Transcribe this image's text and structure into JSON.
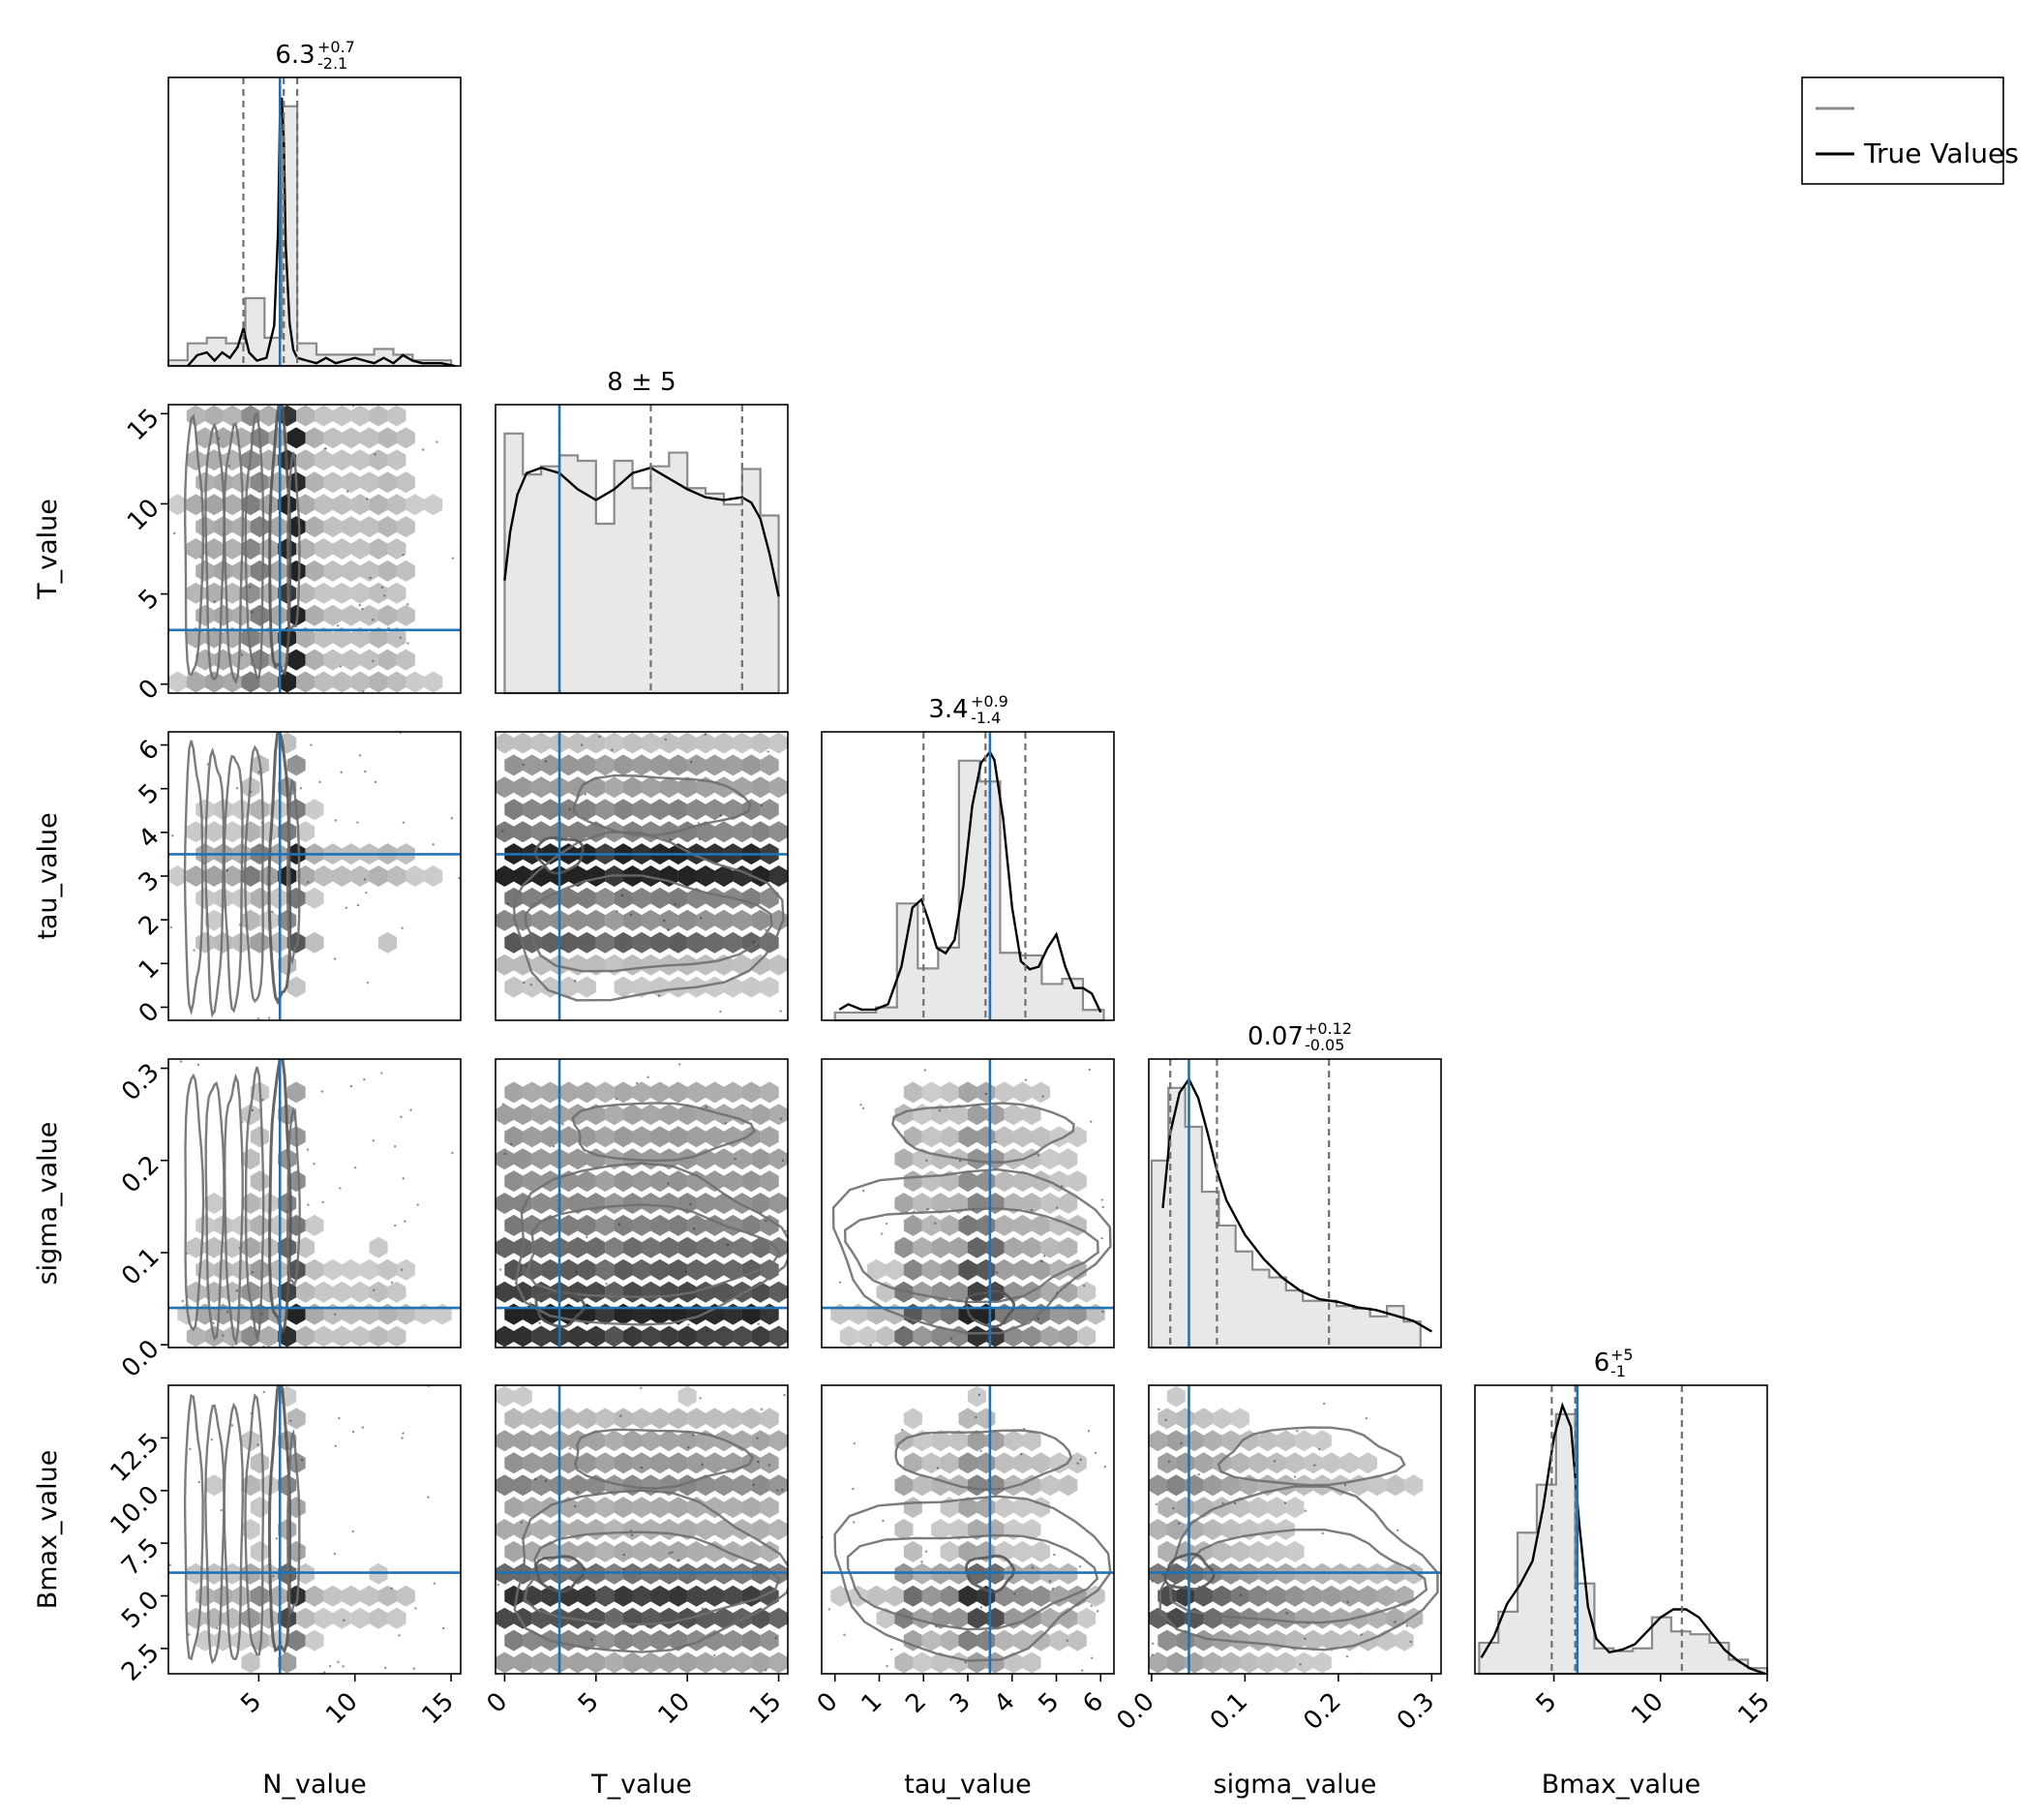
{
  "chart_data": {
    "type": "corner",
    "parameters": [
      "N_value",
      "T_value",
      "tau_value",
      "sigma_value",
      "Bmax_value"
    ],
    "axis_labels": [
      "N_value",
      "T_value",
      "tau_value",
      "sigma_value",
      "Bmax_value"
    ],
    "ranges": [
      [
        0.3,
        15.5
      ],
      [
        -0.5,
        15.5
      ],
      [
        -0.3,
        6.3
      ],
      [
        -0.003,
        0.31
      ],
      [
        1.3,
        15.0
      ]
    ],
    "ticks": [
      {
        "values": [
          5,
          10,
          15
        ],
        "labels": [
          "5",
          "10",
          "15"
        ]
      },
      {
        "values": [
          0,
          5,
          10,
          15
        ],
        "labels": [
          "0",
          "5",
          "10",
          "15"
        ]
      },
      {
        "values": [
          0,
          1,
          2,
          3,
          4,
          5,
          6
        ],
        "labels": [
          "0",
          "1",
          "2",
          "3",
          "4",
          "5",
          "6"
        ]
      },
      {
        "values": [
          0.0,
          0.1,
          0.2,
          0.3
        ],
        "labels": [
          "0.0",
          "0.1",
          "0.2",
          "0.3"
        ]
      },
      {
        "values": [
          2.5,
          5.0,
          7.5,
          10.0,
          12.5
        ],
        "labels": [
          "2.5",
          "5.0",
          "7.5",
          "10.0",
          "12.5"
        ]
      }
    ],
    "x_ticks_bottom": [
      {
        "values": [
          5,
          10,
          15
        ],
        "labels": [
          "5",
          "10",
          "15"
        ]
      },
      {
        "values": [
          0,
          5,
          10,
          15
        ],
        "labels": [
          "0",
          "5",
          "10",
          "15"
        ]
      },
      {
        "values": [
          0,
          1,
          2,
          3,
          4,
          5,
          6
        ],
        "labels": [
          "0",
          "1",
          "2",
          "3",
          "4",
          "5",
          "6"
        ]
      },
      {
        "values": [
          0.0,
          0.1,
          0.2,
          0.3
        ],
        "labels": [
          "0.0",
          "0.1",
          "0.2",
          "0.3"
        ]
      },
      {
        "values": [
          5,
          10,
          15
        ],
        "labels": [
          "5",
          "10",
          "15"
        ]
      }
    ],
    "titles": [
      {
        "main": "6.3",
        "sup": "+0.7",
        "sub": "-2.1"
      },
      {
        "main": "8 ± 5",
        "sup": "",
        "sub": ""
      },
      {
        "main": "3.4",
        "sup": "+0.9",
        "sub": "-1.4"
      },
      {
        "main": "0.07",
        "sup": "+0.12",
        "sub": "-0.05"
      },
      {
        "main": "6",
        "sup": "+5",
        "sub": "-1"
      }
    ],
    "quantiles": [
      [
        4.2,
        6.3,
        7.0
      ],
      [
        3.0,
        8.0,
        13.0
      ],
      [
        2.0,
        3.4,
        4.3
      ],
      [
        0.02,
        0.07,
        0.19
      ],
      [
        4.9,
        6.0,
        11.0
      ]
    ],
    "true_values": [
      6.1,
      3.0,
      3.5,
      0.04,
      6.1
    ],
    "histograms": [
      {
        "edges": [
          0.3,
          1.3,
          2.3,
          3.3,
          4.3,
          5.3,
          6.2,
          7.0,
          8.0,
          9.0,
          10.0,
          11.0,
          12.0,
          13.0,
          14.0,
          15.0
        ],
        "counts": [
          0.01,
          0.04,
          0.05,
          0.04,
          0.12,
          0.05,
          0.46,
          0.04,
          0.02,
          0.02,
          0.02,
          0.03,
          0.02,
          0.01,
          0.01
        ]
      },
      {
        "edges": [
          0,
          1,
          2,
          3,
          4,
          5,
          6,
          7,
          8,
          9,
          10,
          11,
          12,
          13,
          14,
          15
        ],
        "counts": [
          0.95,
          0.8,
          0.83,
          0.87,
          0.85,
          0.62,
          0.85,
          0.75,
          0.83,
          0.88,
          0.75,
          0.73,
          0.69,
          0.82,
          0.65
        ]
      },
      {
        "edges": [
          0.0,
          0.47,
          0.93,
          1.4,
          1.87,
          2.33,
          2.8,
          3.27,
          3.73,
          4.2,
          4.67,
          5.13,
          5.6,
          6.07
        ],
        "counts": [
          0.03,
          0.03,
          0.05,
          0.45,
          0.2,
          0.28,
          1.0,
          0.92,
          0.26,
          0.25,
          0.14,
          0.16,
          0.04
        ]
      },
      {
        "edges": [
          0.0,
          0.018,
          0.036,
          0.054,
          0.072,
          0.09,
          0.108,
          0.126,
          0.144,
          0.162,
          0.18,
          0.198,
          0.216,
          0.234,
          0.252,
          0.27,
          0.288
        ],
        "counts": [
          0.72,
          1.0,
          0.85,
          0.6,
          0.47,
          0.37,
          0.3,
          0.27,
          0.22,
          0.18,
          0.18,
          0.16,
          0.15,
          0.12,
          0.16,
          0.1
        ]
      },
      {
        "edges": [
          1.5,
          2.4,
          3.3,
          4.2,
          5.1,
          6.0,
          6.9,
          7.8,
          8.7,
          9.6,
          10.5,
          11.4,
          12.3,
          13.2,
          14.1,
          15.0
        ],
        "counts": [
          0.11,
          0.22,
          0.5,
          0.67,
          0.92,
          0.32,
          0.09,
          0.08,
          0.09,
          0.2,
          0.15,
          0.14,
          0.11,
          0.05,
          0.02
        ]
      }
    ],
    "kde_curves": [
      {
        "x": [
          1.3,
          1.8,
          2.3,
          2.7,
          3.1,
          3.5,
          3.9,
          4.2,
          4.5,
          4.9,
          5.4,
          5.8,
          6.0,
          6.1,
          6.2,
          6.3,
          6.4,
          6.6,
          6.8,
          7.0,
          7.5,
          8.0,
          8.5,
          9.0,
          9.5,
          10.0,
          10.5,
          11.0,
          11.5,
          12.0,
          12.5,
          13.0,
          13.5,
          14.0,
          14.5,
          15.2
        ],
        "y": [
          0.0,
          0.04,
          0.05,
          0.02,
          0.05,
          0.03,
          0.07,
          0.14,
          0.05,
          0.02,
          0.03,
          0.15,
          0.5,
          0.92,
          1.0,
          0.85,
          0.45,
          0.16,
          0.06,
          0.03,
          0.02,
          0.01,
          0.03,
          0.01,
          0.02,
          0.03,
          0.02,
          0.01,
          0.03,
          0.01,
          0.04,
          0.02,
          0.01,
          0.01,
          0.01,
          0.0
        ]
      },
      {
        "x": [
          0.0,
          0.3,
          0.7,
          1.2,
          2.0,
          3.0,
          4.0,
          5.0,
          6.0,
          7.0,
          8.0,
          9.0,
          9.5,
          10.0,
          11.0,
          12.0,
          13.0,
          13.5,
          14.0,
          14.5,
          15.0
        ],
        "y": [
          0.42,
          0.6,
          0.74,
          0.82,
          0.84,
          0.82,
          0.76,
          0.72,
          0.76,
          0.82,
          0.84,
          0.8,
          0.78,
          0.76,
          0.73,
          0.72,
          0.73,
          0.71,
          0.65,
          0.52,
          0.36
        ]
      },
      {
        "x": [
          0.1,
          0.3,
          0.6,
          0.9,
          1.2,
          1.5,
          1.75,
          1.95,
          2.1,
          2.3,
          2.5,
          2.7,
          2.9,
          3.1,
          3.3,
          3.5,
          3.6,
          3.8,
          4.0,
          4.2,
          4.4,
          4.6,
          4.8,
          5.0,
          5.2,
          5.4,
          5.6,
          5.8,
          6.0
        ],
        "y": [
          0.04,
          0.06,
          0.04,
          0.04,
          0.06,
          0.2,
          0.42,
          0.45,
          0.38,
          0.27,
          0.25,
          0.3,
          0.5,
          0.8,
          0.96,
          1.0,
          0.97,
          0.75,
          0.42,
          0.22,
          0.19,
          0.2,
          0.27,
          0.32,
          0.2,
          0.12,
          0.12,
          0.1,
          0.03
        ]
      },
      {
        "x": [
          0.012,
          0.02,
          0.03,
          0.04,
          0.05,
          0.06,
          0.07,
          0.08,
          0.1,
          0.12,
          0.14,
          0.16,
          0.18,
          0.2,
          0.22,
          0.24,
          0.26,
          0.28,
          0.3
        ],
        "y": [
          0.52,
          0.8,
          0.95,
          1.0,
          0.93,
          0.8,
          0.66,
          0.55,
          0.42,
          0.33,
          0.26,
          0.21,
          0.18,
          0.17,
          0.15,
          0.14,
          0.12,
          0.1,
          0.06
        ]
      },
      {
        "x": [
          1.6,
          2.2,
          2.8,
          3.4,
          4.0,
          4.5,
          5.0,
          5.4,
          5.8,
          6.2,
          6.6,
          7.0,
          7.6,
          8.2,
          8.8,
          9.4,
          10.0,
          10.6,
          11.2,
          11.8,
          12.4,
          13.0,
          13.6,
          14.2,
          14.9
        ],
        "y": [
          0.06,
          0.14,
          0.26,
          0.33,
          0.42,
          0.62,
          0.88,
          1.0,
          0.92,
          0.55,
          0.25,
          0.13,
          0.08,
          0.09,
          0.11,
          0.16,
          0.21,
          0.24,
          0.24,
          0.21,
          0.15,
          0.09,
          0.05,
          0.02,
          0.0
        ]
      }
    ],
    "hex_density": [
      {
        "pair": [
          0,
          1
        ],
        "columns": [
          [
            1.5,
            0.25
          ],
          [
            2.6,
            0.25
          ],
          [
            3.5,
            0.25
          ],
          [
            4.6,
            0.3
          ],
          [
            6.1,
            0.9
          ],
          [
            7.0,
            0.2
          ],
          [
            8.5,
            0.12
          ],
          [
            10.5,
            0.12
          ],
          [
            12.5,
            0.08
          ]
        ]
      },
      {
        "pair": [
          1,
          2
        ],
        "bands": [
          [
            3.4,
            0.75
          ],
          [
            2.0,
            0.25
          ],
          [
            5.0,
            0.2
          ],
          [
            2.5,
            0.18
          ]
        ]
      },
      {
        "pair": [
          1,
          3
        ],
        "bands": [
          [
            0.04,
            0.6
          ],
          [
            0.1,
            0.35
          ],
          [
            0.2,
            0.2
          ]
        ]
      },
      {
        "pair": [
          1,
          4
        ],
        "bands": [
          [
            5.8,
            0.75
          ],
          [
            4.5,
            0.3
          ],
          [
            11.5,
            0.3
          ]
        ]
      }
    ],
    "legend": {
      "entries": [
        {
          "label": "",
          "color": "#8c8c8c"
        },
        {
          "label": "True Values",
          "color": "#000000"
        }
      ],
      "position": "top-right"
    },
    "colors": {
      "truth": "#1f72b4",
      "kde": "#000000",
      "quantile": "#707070",
      "contour": "#6e6e6e",
      "hist_fill": "#e8e8e8",
      "hist_edge": "#8a8a8a"
    },
    "grid": false
  }
}
